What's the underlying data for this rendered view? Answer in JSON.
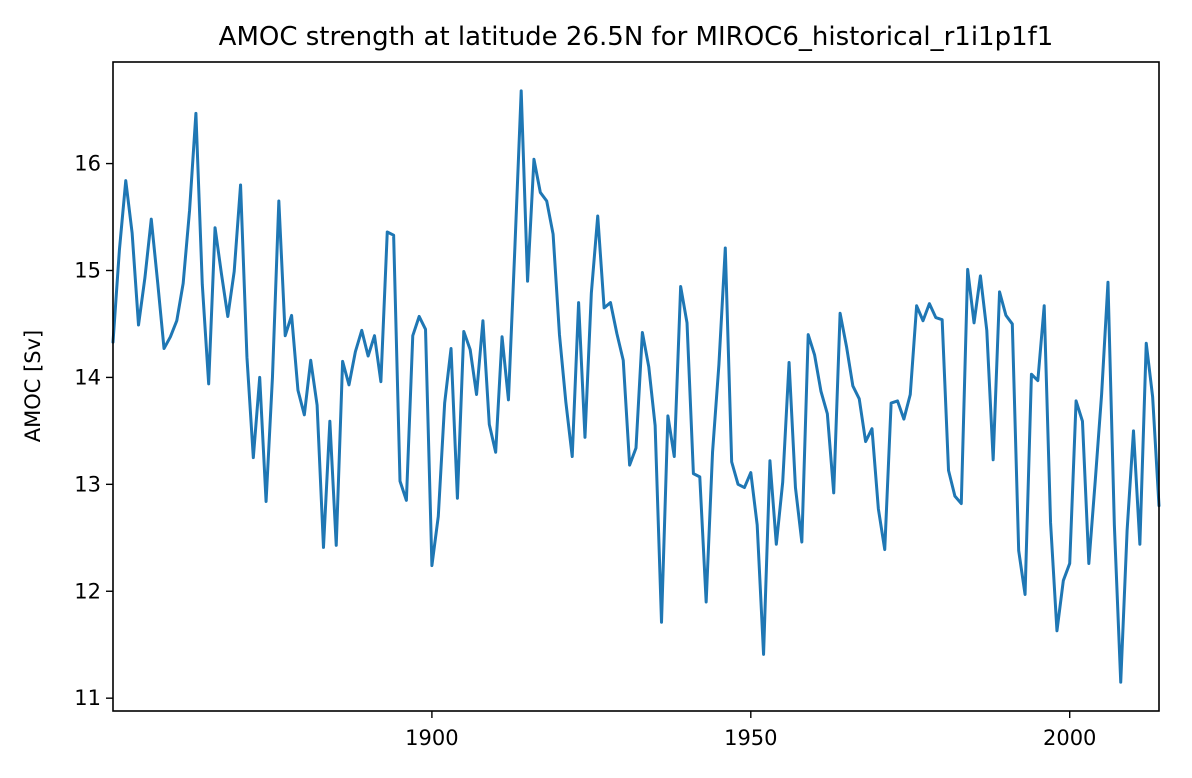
{
  "chart_data": {
    "type": "line",
    "title": "AMOC strength at latitude 26.5N for MIROC6_historical_r1i1p1f1",
    "xlabel": "",
    "ylabel": "AMOC [Sv]",
    "xlim": [
      1850,
      2014
    ],
    "ylim": [
      10.88,
      16.95
    ],
    "xticks": [
      1900,
      1950,
      2000
    ],
    "yticks": [
      11,
      12,
      13,
      14,
      15,
      16
    ],
    "grid": false,
    "color": "#1f77b4",
    "x": [
      1850,
      1851,
      1852,
      1853,
      1854,
      1855,
      1856,
      1857,
      1858,
      1859,
      1860,
      1861,
      1862,
      1863,
      1864,
      1865,
      1866,
      1867,
      1868,
      1869,
      1870,
      1871,
      1872,
      1873,
      1874,
      1875,
      1876,
      1877,
      1878,
      1879,
      1880,
      1881,
      1882,
      1883,
      1884,
      1885,
      1886,
      1887,
      1888,
      1889,
      1890,
      1891,
      1892,
      1893,
      1894,
      1895,
      1896,
      1897,
      1898,
      1899,
      1900,
      1901,
      1902,
      1903,
      1904,
      1905,
      1906,
      1907,
      1908,
      1909,
      1910,
      1911,
      1912,
      1913,
      1914,
      1915,
      1916,
      1917,
      1918,
      1919,
      1920,
      1921,
      1922,
      1923,
      1924,
      1925,
      1926,
      1927,
      1928,
      1929,
      1930,
      1931,
      1932,
      1933,
      1934,
      1935,
      1936,
      1937,
      1938,
      1939,
      1940,
      1941,
      1942,
      1943,
      1944,
      1945,
      1946,
      1947,
      1948,
      1949,
      1950,
      1951,
      1952,
      1953,
      1954,
      1955,
      1956,
      1957,
      1958,
      1959,
      1960,
      1961,
      1962,
      1963,
      1964,
      1965,
      1966,
      1967,
      1968,
      1969,
      1970,
      1971,
      1972,
      1973,
      1974,
      1975,
      1976,
      1977,
      1978,
      1979,
      1980,
      1981,
      1982,
      1983,
      1984,
      1985,
      1986,
      1987,
      1988,
      1989,
      1990,
      1991,
      1992,
      1993,
      1994,
      1995,
      1996,
      1997,
      1998,
      1999,
      2000,
      2001,
      2002,
      2003,
      2004,
      2005,
      2006,
      2007,
      2008,
      2009,
      2010,
      2011,
      2012,
      2013,
      2014
    ],
    "y": [
      14.33,
      15.19,
      15.84,
      15.35,
      14.49,
      14.93,
      15.48,
      14.89,
      14.27,
      14.38,
      14.53,
      14.88,
      15.56,
      16.47,
      14.87,
      13.94,
      15.4,
      14.97,
      14.57,
      14.99,
      15.8,
      14.19,
      13.25,
      14.0,
      12.84,
      14.0,
      15.65,
      14.39,
      14.58,
      13.88,
      13.65,
      14.16,
      13.74,
      12.41,
      13.59,
      12.43,
      14.15,
      13.93,
      14.24,
      14.44,
      14.2,
      14.39,
      13.96,
      15.36,
      15.33,
      13.03,
      12.85,
      14.39,
      14.57,
      14.45,
      12.24,
      12.7,
      13.76,
      14.27,
      12.87,
      14.43,
      14.26,
      13.84,
      14.53,
      13.56,
      13.3,
      14.38,
      13.79,
      15.2,
      16.68,
      14.9,
      16.04,
      15.73,
      15.65,
      15.34,
      14.4,
      13.77,
      13.26,
      14.7,
      13.44,
      14.79,
      15.51,
      14.65,
      14.7,
      14.41,
      14.16,
      13.18,
      13.34,
      14.42,
      14.1,
      13.55,
      11.71,
      13.64,
      13.26,
      14.85,
      14.51,
      13.1,
      13.07,
      11.9,
      13.3,
      14.12,
      15.21,
      13.21,
      13.0,
      12.97,
      13.11,
      12.62,
      11.41,
      13.22,
      12.44,
      13.02,
      14.14,
      12.97,
      12.46,
      14.4,
      14.21,
      13.87,
      13.66,
      12.92,
      14.6,
      14.29,
      13.92,
      13.8,
      13.4,
      13.52,
      12.77,
      12.39,
      13.76,
      13.78,
      13.61,
      13.84,
      14.67,
      14.53,
      14.69,
      14.56,
      14.54,
      13.13,
      12.89,
      12.82,
      15.01,
      14.51,
      14.95,
      14.44,
      13.23,
      14.8,
      14.58,
      14.5,
      12.38,
      11.97,
      14.03,
      13.97,
      14.67,
      12.64,
      11.63,
      12.1,
      12.26,
      13.78,
      13.59,
      12.26,
      13.03,
      13.84,
      14.89,
      12.62,
      11.15,
      12.57,
      13.5,
      12.44,
      14.32,
      13.82,
      12.8
    ]
  }
}
